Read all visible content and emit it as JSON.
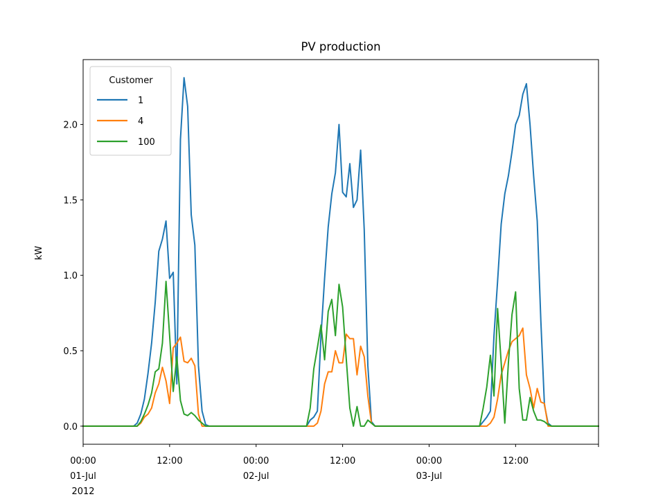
{
  "chart_data": {
    "type": "line",
    "title": "PV production",
    "xlabel": "",
    "ylabel": "kW",
    "ylim": [
      -0.12,
      2.43
    ],
    "xlim": [
      "2012-07-01 00:00",
      "2012-07-03 23:30"
    ],
    "grid": false,
    "legend": {
      "title": "Customer",
      "placement": "top-left"
    },
    "x_ticks": [
      {
        "x": "2012-07-01 00:00",
        "lines": [
          "00:00",
          "01-Jul",
          "2012"
        ]
      },
      {
        "x": "2012-07-01 12:00",
        "lines": [
          "12:00"
        ]
      },
      {
        "x": "2012-07-02 00:00",
        "lines": [
          "00:00",
          "02-Jul"
        ]
      },
      {
        "x": "2012-07-02 12:00",
        "lines": [
          "12:00"
        ]
      },
      {
        "x": "2012-07-03 00:00",
        "lines": [
          "00:00",
          "03-Jul"
        ]
      },
      {
        "x": "2012-07-03 12:00",
        "lines": [
          "12:00"
        ]
      }
    ],
    "y_ticks": [
      {
        "y": 0.0,
        "label": "0.0"
      },
      {
        "y": 0.5,
        "label": "0.5"
      },
      {
        "y": 1.0,
        "label": "1.0"
      },
      {
        "y": 1.5,
        "label": "1.5"
      },
      {
        "y": 2.0,
        "label": "2.0"
      }
    ],
    "series": [
      {
        "name": "1",
        "color": "#1f77b4",
        "points": [
          [
            "2012-07-01 00:00",
            0.0
          ],
          [
            "2012-07-01 07:00",
            0.0
          ],
          [
            "2012-07-01 07:30",
            0.02
          ],
          [
            "2012-07-01 08:00",
            0.08
          ],
          [
            "2012-07-01 08:30",
            0.18
          ],
          [
            "2012-07-01 09:00",
            0.35
          ],
          [
            "2012-07-01 09:30",
            0.55
          ],
          [
            "2012-07-01 10:00",
            0.82
          ],
          [
            "2012-07-01 10:30",
            1.16
          ],
          [
            "2012-07-01 11:00",
            1.24
          ],
          [
            "2012-07-01 11:30",
            1.36
          ],
          [
            "2012-07-01 12:00",
            0.98
          ],
          [
            "2012-07-01 12:30",
            1.02
          ],
          [
            "2012-07-01 13:00",
            0.28
          ],
          [
            "2012-07-01 13:30",
            1.9
          ],
          [
            "2012-07-01 14:00",
            2.31
          ],
          [
            "2012-07-01 14:30",
            2.12
          ],
          [
            "2012-07-01 15:00",
            1.4
          ],
          [
            "2012-07-01 15:30",
            1.2
          ],
          [
            "2012-07-01 16:00",
            0.4
          ],
          [
            "2012-07-01 16:30",
            0.1
          ],
          [
            "2012-07-01 17:00",
            0.01
          ],
          [
            "2012-07-01 17:30",
            0.0
          ],
          [
            "2012-07-02 07:00",
            0.0
          ],
          [
            "2012-07-02 07:30",
            0.04
          ],
          [
            "2012-07-02 08:00",
            0.06
          ],
          [
            "2012-07-02 08:30",
            0.1
          ],
          [
            "2012-07-02 09:00",
            0.6
          ],
          [
            "2012-07-02 09:30",
            0.98
          ],
          [
            "2012-07-02 10:00",
            1.32
          ],
          [
            "2012-07-02 10:30",
            1.54
          ],
          [
            "2012-07-02 11:00",
            1.68
          ],
          [
            "2012-07-02 11:30",
            2.0
          ],
          [
            "2012-07-02 12:00",
            1.55
          ],
          [
            "2012-07-02 12:30",
            1.52
          ],
          [
            "2012-07-02 13:00",
            1.74
          ],
          [
            "2012-07-02 13:30",
            1.45
          ],
          [
            "2012-07-02 14:00",
            1.5
          ],
          [
            "2012-07-02 14:30",
            1.83
          ],
          [
            "2012-07-02 15:00",
            1.3
          ],
          [
            "2012-07-02 15:30",
            0.4
          ],
          [
            "2012-07-02 16:00",
            0.03
          ],
          [
            "2012-07-02 16:30",
            0.0
          ],
          [
            "2012-07-03 07:00",
            0.0
          ],
          [
            "2012-07-03 07:30",
            0.03
          ],
          [
            "2012-07-03 08:00",
            0.06
          ],
          [
            "2012-07-03 08:30",
            0.1
          ],
          [
            "2012-07-03 09:00",
            0.6
          ],
          [
            "2012-07-03 09:30",
            0.96
          ],
          [
            "2012-07-03 10:00",
            1.34
          ],
          [
            "2012-07-03 10:30",
            1.54
          ],
          [
            "2012-07-03 11:00",
            1.66
          ],
          [
            "2012-07-03 11:30",
            1.82
          ],
          [
            "2012-07-03 12:00",
            2.0
          ],
          [
            "2012-07-03 12:30",
            2.06
          ],
          [
            "2012-07-03 13:00",
            2.2
          ],
          [
            "2012-07-03 13:30",
            2.27
          ],
          [
            "2012-07-03 14:00",
            2.0
          ],
          [
            "2012-07-03 14:30",
            1.66
          ],
          [
            "2012-07-03 15:00",
            1.36
          ],
          [
            "2012-07-03 15:30",
            0.7
          ],
          [
            "2012-07-03 16:00",
            0.14
          ],
          [
            "2012-07-03 16:30",
            0.02
          ],
          [
            "2012-07-03 17:00",
            0.0
          ],
          [
            "2012-07-03 23:30",
            0.0
          ]
        ]
      },
      {
        "name": "4",
        "color": "#ff7f0e",
        "points": [
          [
            "2012-07-01 00:00",
            0.0
          ],
          [
            "2012-07-01 07:30",
            0.0
          ],
          [
            "2012-07-01 08:00",
            0.02
          ],
          [
            "2012-07-01 08:30",
            0.06
          ],
          [
            "2012-07-01 09:00",
            0.08
          ],
          [
            "2012-07-01 09:30",
            0.12
          ],
          [
            "2012-07-01 10:00",
            0.22
          ],
          [
            "2012-07-01 10:30",
            0.28
          ],
          [
            "2012-07-01 11:00",
            0.39
          ],
          [
            "2012-07-01 11:30",
            0.3
          ],
          [
            "2012-07-01 12:00",
            0.15
          ],
          [
            "2012-07-01 12:30",
            0.52
          ],
          [
            "2012-07-01 13:00",
            0.55
          ],
          [
            "2012-07-01 13:30",
            0.59
          ],
          [
            "2012-07-01 14:00",
            0.43
          ],
          [
            "2012-07-01 14:30",
            0.42
          ],
          [
            "2012-07-01 15:00",
            0.45
          ],
          [
            "2012-07-01 15:30",
            0.4
          ],
          [
            "2012-07-01 16:00",
            0.08
          ],
          [
            "2012-07-01 16:30",
            0.0
          ],
          [
            "2012-07-02 08:00",
            0.0
          ],
          [
            "2012-07-02 08:30",
            0.02
          ],
          [
            "2012-07-02 09:00",
            0.1
          ],
          [
            "2012-07-02 09:30",
            0.28
          ],
          [
            "2012-07-02 10:00",
            0.36
          ],
          [
            "2012-07-02 10:30",
            0.36
          ],
          [
            "2012-07-02 11:00",
            0.5
          ],
          [
            "2012-07-02 11:30",
            0.42
          ],
          [
            "2012-07-02 12:00",
            0.42
          ],
          [
            "2012-07-02 12:30",
            0.61
          ],
          [
            "2012-07-02 13:00",
            0.58
          ],
          [
            "2012-07-02 13:30",
            0.58
          ],
          [
            "2012-07-02 14:00",
            0.34
          ],
          [
            "2012-07-02 14:30",
            0.53
          ],
          [
            "2012-07-02 15:00",
            0.46
          ],
          [
            "2012-07-02 15:30",
            0.2
          ],
          [
            "2012-07-02 16:00",
            0.02
          ],
          [
            "2012-07-02 16:30",
            0.0
          ],
          [
            "2012-07-03 08:00",
            0.0
          ],
          [
            "2012-07-03 08:30",
            0.02
          ],
          [
            "2012-07-03 09:00",
            0.06
          ],
          [
            "2012-07-03 09:30",
            0.18
          ],
          [
            "2012-07-03 10:00",
            0.34
          ],
          [
            "2012-07-03 10:30",
            0.42
          ],
          [
            "2012-07-03 11:00",
            0.5
          ],
          [
            "2012-07-03 11:30",
            0.56
          ],
          [
            "2012-07-03 12:00",
            0.58
          ],
          [
            "2012-07-03 12:30",
            0.6
          ],
          [
            "2012-07-03 13:00",
            0.65
          ],
          [
            "2012-07-03 13:30",
            0.34
          ],
          [
            "2012-07-03 14:00",
            0.25
          ],
          [
            "2012-07-03 14:30",
            0.12
          ],
          [
            "2012-07-03 15:00",
            0.25
          ],
          [
            "2012-07-03 15:30",
            0.16
          ],
          [
            "2012-07-03 16:00",
            0.15
          ],
          [
            "2012-07-03 16:30",
            0.0
          ],
          [
            "2012-07-03 23:30",
            0.0
          ]
        ]
      },
      {
        "name": "100",
        "color": "#2ca02c",
        "points": [
          [
            "2012-07-01 00:00",
            0.0
          ],
          [
            "2012-07-01 07:30",
            0.0
          ],
          [
            "2012-07-01 08:00",
            0.03
          ],
          [
            "2012-07-01 08:30",
            0.08
          ],
          [
            "2012-07-01 09:00",
            0.14
          ],
          [
            "2012-07-01 09:30",
            0.22
          ],
          [
            "2012-07-01 10:00",
            0.36
          ],
          [
            "2012-07-01 10:30",
            0.38
          ],
          [
            "2012-07-01 11:00",
            0.55
          ],
          [
            "2012-07-01 11:30",
            0.96
          ],
          [
            "2012-07-01 12:00",
            0.6
          ],
          [
            "2012-07-01 12:30",
            0.23
          ],
          [
            "2012-07-01 13:00",
            0.46
          ],
          [
            "2012-07-01 13:30",
            0.17
          ],
          [
            "2012-07-01 14:00",
            0.08
          ],
          [
            "2012-07-01 14:30",
            0.07
          ],
          [
            "2012-07-01 15:00",
            0.09
          ],
          [
            "2012-07-01 15:30",
            0.07
          ],
          [
            "2012-07-01 16:00",
            0.04
          ],
          [
            "2012-07-01 16:30",
            0.02
          ],
          [
            "2012-07-01 17:00",
            0.0
          ],
          [
            "2012-07-02 07:00",
            0.0
          ],
          [
            "2012-07-02 07:30",
            0.12
          ],
          [
            "2012-07-02 08:00",
            0.38
          ],
          [
            "2012-07-02 08:30",
            0.52
          ],
          [
            "2012-07-02 09:00",
            0.67
          ],
          [
            "2012-07-02 09:30",
            0.44
          ],
          [
            "2012-07-02 10:00",
            0.76
          ],
          [
            "2012-07-02 10:30",
            0.84
          ],
          [
            "2012-07-02 11:00",
            0.6
          ],
          [
            "2012-07-02 11:30",
            0.94
          ],
          [
            "2012-07-02 12:00",
            0.79
          ],
          [
            "2012-07-02 12:30",
            0.45
          ],
          [
            "2012-07-02 13:00",
            0.12
          ],
          [
            "2012-07-02 13:30",
            0.0
          ],
          [
            "2012-07-02 14:00",
            0.13
          ],
          [
            "2012-07-02 14:30",
            0.0
          ],
          [
            "2012-07-02 15:00",
            0.0
          ],
          [
            "2012-07-02 15:30",
            0.04
          ],
          [
            "2012-07-02 16:00",
            0.02
          ],
          [
            "2012-07-02 16:30",
            0.0
          ],
          [
            "2012-07-03 07:00",
            0.0
          ],
          [
            "2012-07-03 07:30",
            0.12
          ],
          [
            "2012-07-03 08:00",
            0.26
          ],
          [
            "2012-07-03 08:30",
            0.47
          ],
          [
            "2012-07-03 09:00",
            0.2
          ],
          [
            "2012-07-03 09:30",
            0.78
          ],
          [
            "2012-07-03 10:00",
            0.42
          ],
          [
            "2012-07-03 10:30",
            0.02
          ],
          [
            "2012-07-03 11:00",
            0.42
          ],
          [
            "2012-07-03 11:30",
            0.74
          ],
          [
            "2012-07-03 12:00",
            0.89
          ],
          [
            "2012-07-03 12:30",
            0.25
          ],
          [
            "2012-07-03 13:00",
            0.04
          ],
          [
            "2012-07-03 13:30",
            0.04
          ],
          [
            "2012-07-03 14:00",
            0.19
          ],
          [
            "2012-07-03 14:30",
            0.1
          ],
          [
            "2012-07-03 15:00",
            0.04
          ],
          [
            "2012-07-03 15:30",
            0.04
          ],
          [
            "2012-07-03 16:00",
            0.03
          ],
          [
            "2012-07-03 16:30",
            0.01
          ],
          [
            "2012-07-03 17:00",
            0.0
          ],
          [
            "2012-07-03 23:30",
            0.0
          ]
        ]
      }
    ]
  }
}
